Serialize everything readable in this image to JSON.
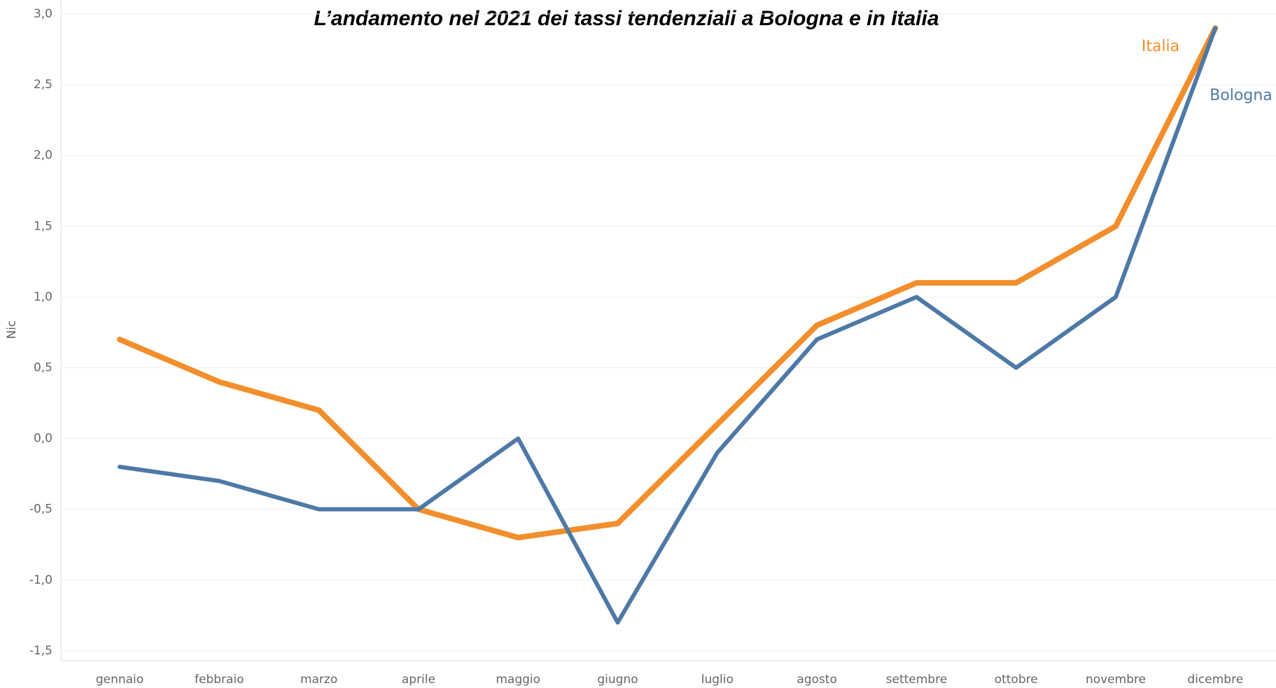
{
  "chart_data": {
    "type": "line",
    "title": "L’andamento nel 2021 dei tassi tendenziali a Bologna e in Italia",
    "y_label": "Nic",
    "categories": [
      "gennaio",
      "febbraio",
      "marzo",
      "aprile",
      "maggio",
      "giugno",
      "luglio",
      "agosto",
      "settembre",
      "ottobre",
      "novembre",
      "dicembre"
    ],
    "series": [
      {
        "name": "Italia",
        "color": "#f28e2b",
        "values": [
          0.7,
          0.4,
          0.2,
          -0.5,
          -0.7,
          -0.6,
          0.1,
          0.8,
          1.1,
          1.1,
          1.5,
          2.9
        ]
      },
      {
        "name": "Bologna",
        "color": "#4e79a7",
        "values": [
          -0.2,
          -0.3,
          -0.5,
          -0.5,
          0.0,
          -1.3,
          -0.1,
          0.7,
          1.0,
          0.5,
          1.0,
          2.9
        ]
      }
    ],
    "ylim": [
      -1.57,
      3.0
    ],
    "yticks": [
      {
        "value": -1.5,
        "label": "-1,5"
      },
      {
        "value": -1,
        "label": "-1,0"
      },
      {
        "value": -0.5,
        "label": "-0,5"
      },
      {
        "value": 0,
        "label": "0,0"
      },
      {
        "value": 0.5,
        "label": "0,5"
      },
      {
        "value": 1,
        "label": "1,0"
      },
      {
        "value": 1.5,
        "label": "1,5"
      },
      {
        "value": 2,
        "label": "2,0"
      },
      {
        "value": 2.5,
        "label": "2,5"
      },
      {
        "value": 3,
        "label": "3,0"
      }
    ],
    "grid": true
  }
}
